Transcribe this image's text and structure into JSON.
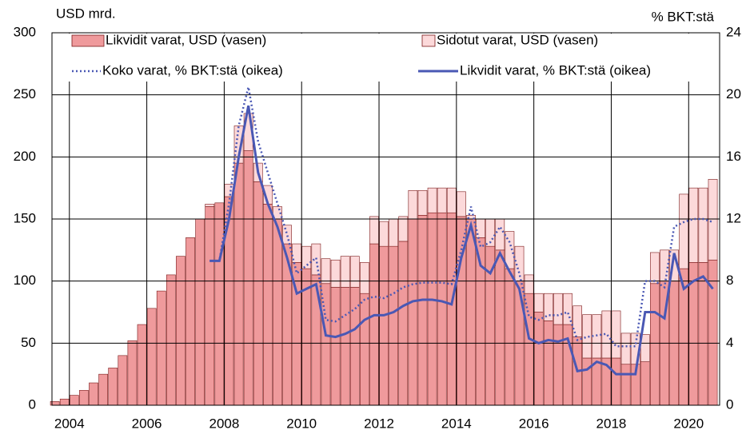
{
  "chart_data": {
    "type": "bar-line",
    "y_label": "USD mrd.",
    "y2_label": "% BKT:stä",
    "x": [
      2003.625,
      2003.875,
      2004.125,
      2004.375,
      2004.625,
      2004.875,
      2005.125,
      2005.375,
      2005.625,
      2005.875,
      2006.125,
      2006.375,
      2006.625,
      2006.875,
      2007.125,
      2007.375,
      2007.625,
      2007.875,
      2008.125,
      2008.375,
      2008.625,
      2008.875,
      2009.125,
      2009.375,
      2009.625,
      2009.875,
      2010.125,
      2010.375,
      2010.625,
      2010.875,
      2011.125,
      2011.375,
      2011.625,
      2011.875,
      2012.125,
      2012.375,
      2012.625,
      2012.875,
      2013.125,
      2013.375,
      2013.625,
      2013.875,
      2014.125,
      2014.375,
      2014.625,
      2014.875,
      2015.125,
      2015.375,
      2015.625,
      2015.875,
      2016.125,
      2016.375,
      2016.625,
      2016.875,
      2017.125,
      2017.375,
      2017.625,
      2017.875,
      2018.125,
      2018.375,
      2018.625,
      2018.875,
      2019.125,
      2019.375,
      2019.625,
      2019.875,
      2020.125,
      2020.375,
      2020.625
    ],
    "series": [
      {
        "name": "Likvidit varat, USD (vasen)",
        "kind": "bar",
        "color": "#ef9a9c",
        "values": [
          3,
          5,
          8,
          12,
          18,
          25,
          30,
          40,
          52,
          65,
          78,
          92,
          105,
          120,
          135,
          150,
          160,
          163,
          168,
          195,
          205,
          180,
          162,
          150,
          130,
          115,
          110,
          105,
          98,
          95,
          95,
          95,
          90,
          130,
          128,
          128,
          132,
          150,
          153,
          155,
          155,
          155,
          152,
          150,
          135,
          128,
          125,
          110,
          100,
          90,
          75,
          68,
          65,
          65,
          55,
          38,
          38,
          38,
          38,
          33,
          33,
          35,
          98,
          100,
          100,
          110,
          115,
          115,
          117
        ]
      },
      {
        "name": "Sidotut varat, USD (vasen)",
        "kind": "bar",
        "color": "#fcd9da",
        "values": [
          0,
          0,
          0,
          0,
          0,
          0,
          0,
          0,
          0,
          0,
          0,
          0,
          0,
          0,
          0,
          0,
          2,
          0,
          10,
          30,
          30,
          15,
          15,
          10,
          15,
          15,
          18,
          25,
          20,
          22,
          25,
          25,
          25,
          22,
          20,
          22,
          20,
          23,
          20,
          20,
          20,
          20,
          20,
          3,
          15,
          22,
          25,
          30,
          28,
          15,
          15,
          22,
          25,
          25,
          25,
          35,
          35,
          38,
          38,
          25,
          25,
          22,
          25,
          25,
          25,
          60,
          60,
          60,
          65
        ]
      },
      {
        "name": "Koko varat, % BKT:stä (oikea)",
        "kind": "line",
        "dash": "dotted",
        "axis": "y2",
        "color": "#4a58b4",
        "values": [
          null,
          null,
          null,
          null,
          null,
          null,
          null,
          null,
          null,
          null,
          null,
          null,
          null,
          null,
          null,
          null,
          9.3,
          9.3,
          13,
          18,
          20.5,
          17,
          15,
          13,
          11,
          8.5,
          9.0,
          9.5,
          5.5,
          5.4,
          5.8,
          6.2,
          6.8,
          7.0,
          6.9,
          7.2,
          7.6,
          7.8,
          7.9,
          7.9,
          7.9,
          7.8,
          10,
          12.8,
          10.2,
          10.5,
          11.5,
          10.5,
          8.5,
          5.7,
          5.5,
          5.8,
          5.8,
          6.0,
          4.2,
          4.4,
          4.5,
          4.6,
          3.8,
          3.8,
          3.8,
          8,
          8,
          7.6,
          11.5,
          11.8,
          12.0,
          12.0,
          11.8
        ]
      },
      {
        "name": "Likvidit varat, % BKT:stä (oikea)",
        "kind": "line",
        "dash": "solid",
        "axis": "y2",
        "color": "#4a58b4",
        "values": [
          null,
          null,
          null,
          null,
          null,
          null,
          null,
          null,
          null,
          null,
          null,
          null,
          null,
          null,
          null,
          null,
          9.3,
          9.3,
          12,
          16,
          19.3,
          15,
          13,
          11.5,
          9.5,
          7.2,
          7.5,
          7.8,
          4.5,
          4.4,
          4.6,
          4.9,
          5.5,
          5.8,
          5.8,
          6.0,
          6.4,
          6.7,
          6.8,
          6.8,
          6.7,
          6.5,
          9.5,
          11.6,
          9.0,
          8.5,
          9.8,
          8.6,
          7.5,
          4.3,
          4.0,
          4.2,
          4.1,
          4.3,
          2.2,
          2.3,
          2.8,
          2.6,
          2.0,
          2.0,
          2.0,
          6.0,
          6.0,
          5.6,
          9.8,
          7.5,
          8.0,
          8.3,
          7.5
        ]
      }
    ],
    "xlim": [
      2003.55,
      2020.8
    ],
    "xticks": [
      2004,
      2006,
      2008,
      2010,
      2012,
      2014,
      2016,
      2018,
      2020
    ],
    "ylim": [
      0,
      300
    ],
    "yticks": [
      0,
      50,
      100,
      150,
      200,
      250,
      300
    ],
    "y2lim": [
      0,
      24
    ],
    "y2ticks": [
      0,
      4,
      8,
      12,
      16,
      20,
      24
    ],
    "grid": true,
    "legend": "top"
  }
}
